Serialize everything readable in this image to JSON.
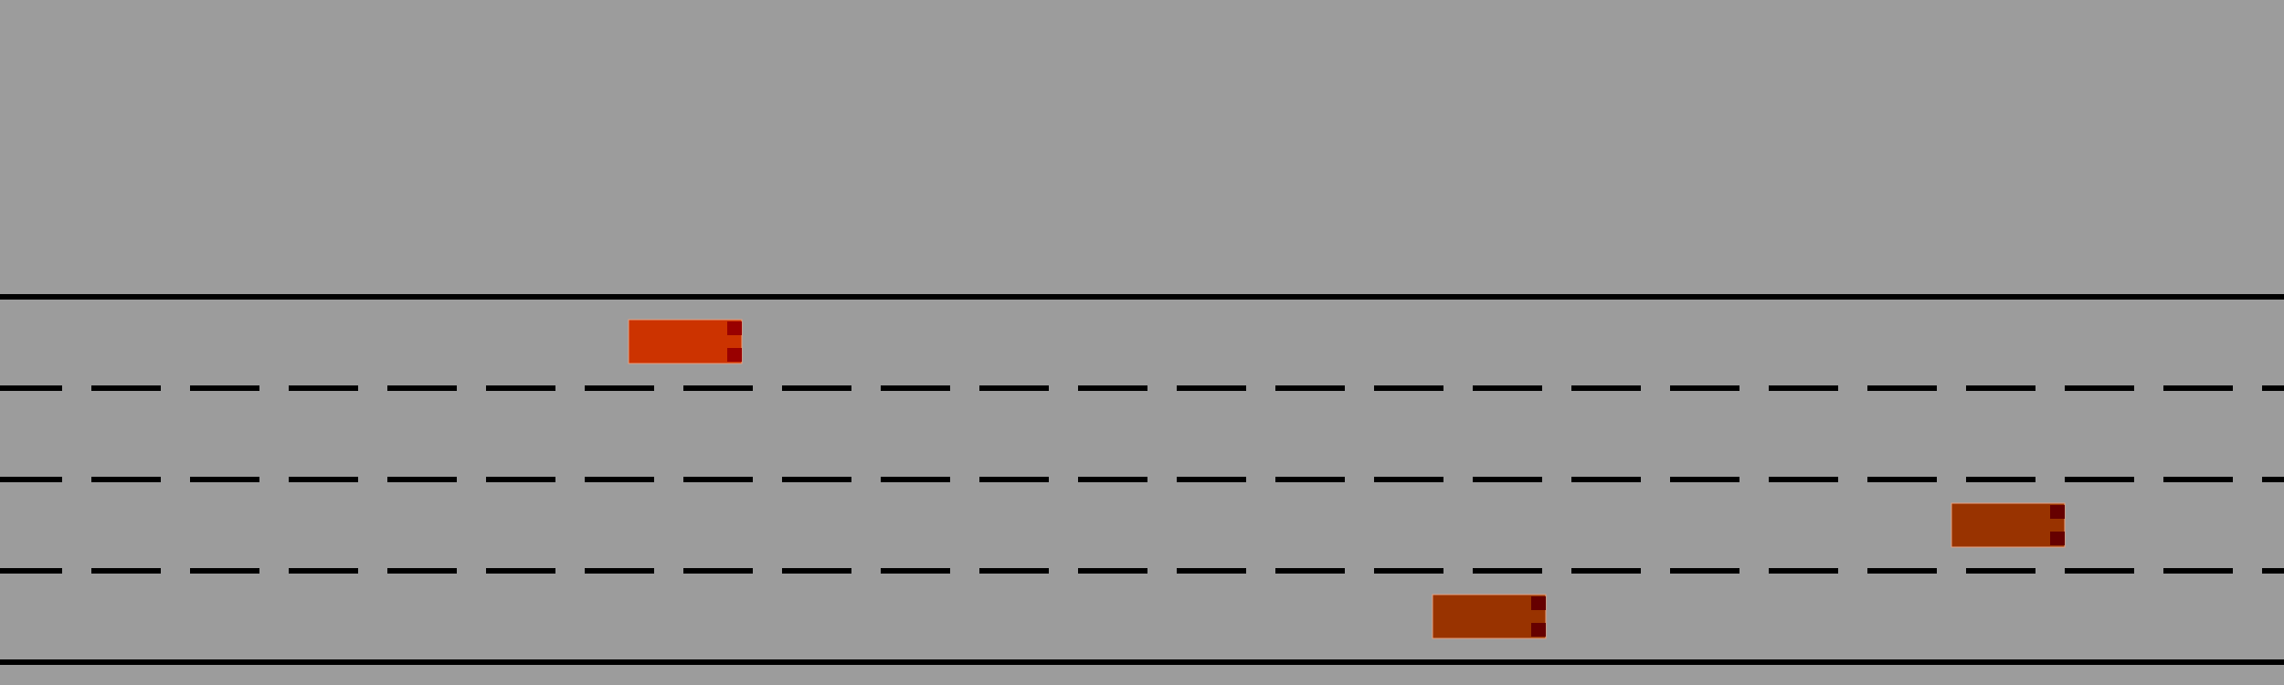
{
  "colors": {
    "background": "#9c9c9c",
    "line": "#000000",
    "ego_car_body": "#cc3300",
    "ego_car_light": "#990000",
    "other_car_body": "#993300",
    "other_car_light": "#660000",
    "car_outline": "#e8a080"
  },
  "road": {
    "lane_count": 4,
    "edge_style": "solid",
    "divider_style": "dashed"
  },
  "vehicles": [
    {
      "role": "ego",
      "lane": 0,
      "heading": "right"
    },
    {
      "role": "other",
      "lane": 2,
      "heading": "right"
    },
    {
      "role": "other",
      "lane": 3,
      "heading": "right"
    }
  ]
}
